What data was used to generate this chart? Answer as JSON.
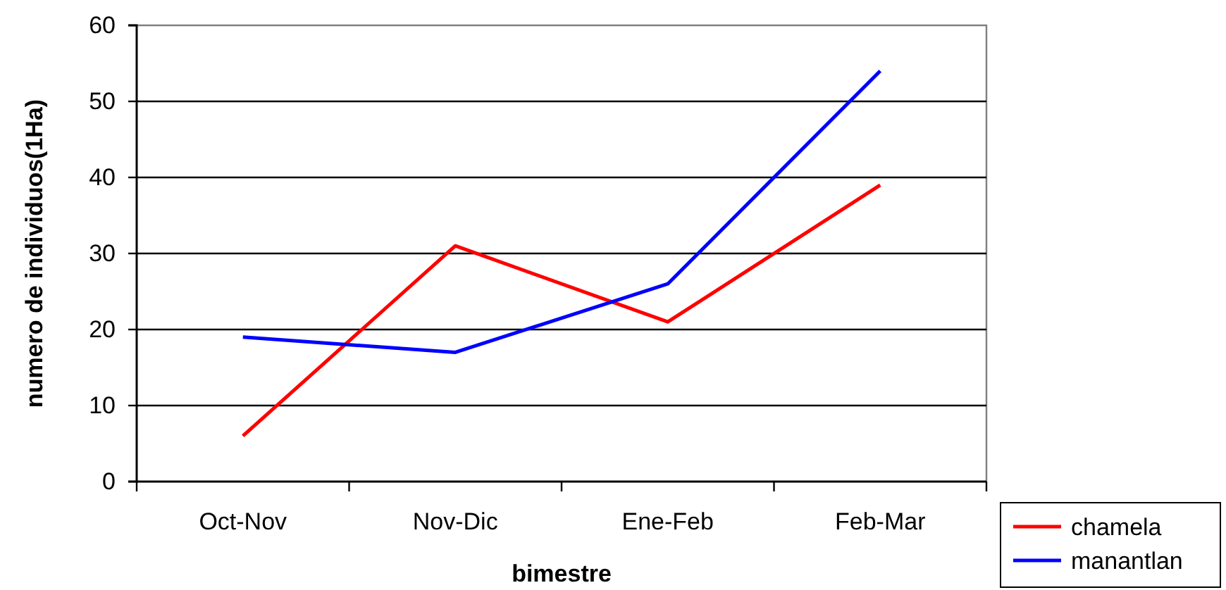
{
  "chart_data": {
    "type": "line",
    "xlabel": "bimestre",
    "ylabel": "numero de individuos(1Ha)",
    "categories": [
      "Oct-Nov",
      "Nov-Dic",
      "Ene-Feb",
      "Feb-Mar"
    ],
    "series": [
      {
        "name": "chamela",
        "color": "#ff0000",
        "values": [
          6,
          31,
          21,
          39
        ]
      },
      {
        "name": "manantlan",
        "color": "#0000ff",
        "values": [
          19,
          17,
          26,
          54
        ]
      }
    ],
    "ylim": [
      0,
      60
    ],
    "yticks": [
      0,
      10,
      20,
      30,
      40,
      50,
      60
    ],
    "grid": "y",
    "legend": "bottom right",
    "marker": "none",
    "line_style": "solid"
  }
}
